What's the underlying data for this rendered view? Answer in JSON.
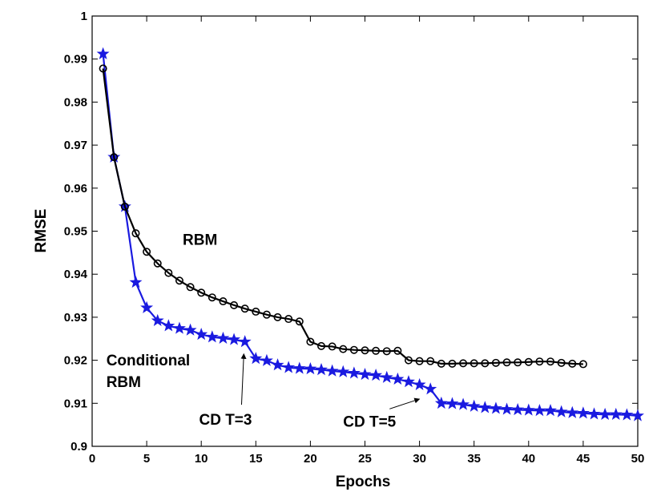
{
  "chart_data": {
    "type": "line",
    "xlabel": "Epochs",
    "ylabel": "RMSE",
    "xlim": [
      0,
      50
    ],
    "ylim": [
      0.9,
      1.0
    ],
    "xticks": [
      "0",
      "5",
      "10",
      "15",
      "20",
      "25",
      "30",
      "35",
      "40",
      "45",
      "50"
    ],
    "yticks": [
      "0.9",
      "0.91",
      "0.92",
      "0.93",
      "0.94",
      "0.95",
      "0.96",
      "0.97",
      "0.98",
      "0.99",
      "1"
    ],
    "grid": false,
    "series": [
      {
        "name": "RBM",
        "color": "#000000",
        "marker": "circle",
        "x": [
          1,
          2,
          3,
          4,
          5,
          6,
          7,
          8,
          9,
          10,
          11,
          12,
          13,
          14,
          15,
          16,
          17,
          18,
          19,
          20,
          21,
          22,
          23,
          24,
          25,
          26,
          27,
          28,
          29,
          30,
          31,
          32,
          33,
          34,
          35,
          36,
          37,
          38,
          39,
          40,
          41,
          42,
          43,
          44,
          45
        ],
        "y": [
          0.9878,
          0.9672,
          0.9557,
          0.9495,
          0.9452,
          0.9425,
          0.9403,
          0.9385,
          0.937,
          0.9357,
          0.9346,
          0.9337,
          0.9328,
          0.932,
          0.9313,
          0.9306,
          0.93,
          0.9296,
          0.929,
          0.9243,
          0.9233,
          0.9232,
          0.9226,
          0.9224,
          0.9223,
          0.9222,
          0.9221,
          0.9222,
          0.92,
          0.9198,
          0.9198,
          0.9192,
          0.9192,
          0.9193,
          0.9193,
          0.9193,
          0.9194,
          0.9195,
          0.9195,
          0.9196,
          0.9197,
          0.9197,
          0.9194,
          0.9192,
          0.9191
        ]
      },
      {
        "name": "Conditional RBM",
        "color": "#1a1ae0",
        "marker": "star",
        "x": [
          1,
          2,
          3,
          4,
          5,
          6,
          7,
          8,
          9,
          10,
          11,
          12,
          13,
          14,
          15,
          16,
          17,
          18,
          19,
          20,
          21,
          22,
          23,
          24,
          25,
          26,
          27,
          28,
          29,
          30,
          31,
          32,
          33,
          34,
          35,
          36,
          37,
          38,
          39,
          40,
          41,
          42,
          43,
          44,
          45,
          46,
          47,
          48,
          49,
          50
        ],
        "y": [
          0.9912,
          0.9672,
          0.9557,
          0.9381,
          0.9322,
          0.9292,
          0.928,
          0.9274,
          0.927,
          0.926,
          0.9254,
          0.9251,
          0.9248,
          0.9243,
          0.9204,
          0.9199,
          0.9189,
          0.9183,
          0.9181,
          0.918,
          0.9178,
          0.9175,
          0.9173,
          0.917,
          0.9167,
          0.9165,
          0.916,
          0.9156,
          0.915,
          0.9143,
          0.9133,
          0.91,
          0.9099,
          0.9097,
          0.9093,
          0.909,
          0.9088,
          0.9086,
          0.9085,
          0.9084,
          0.9083,
          0.9083,
          0.908,
          0.9078,
          0.9077,
          0.9075,
          0.9074,
          0.9074,
          0.9073,
          0.9071
        ]
      }
    ],
    "annotations": [
      {
        "lines": [
          "RBM"
        ],
        "at_x": 8.3,
        "at_y": 0.9468
      },
      {
        "lines": [
          "Conditional",
          "RBM"
        ],
        "at_x": 1.3,
        "at_y": 0.9188
      },
      {
        "lines": [
          "CD T=3"
        ],
        "at_x": 9.8,
        "at_y": 0.905,
        "arrow_to": [
          13.9,
          0.9215
        ]
      },
      {
        "lines": [
          "CD T=5"
        ],
        "at_x": 23.0,
        "at_y": 0.9046,
        "arrow_to": [
          30.0,
          0.911
        ]
      }
    ]
  }
}
